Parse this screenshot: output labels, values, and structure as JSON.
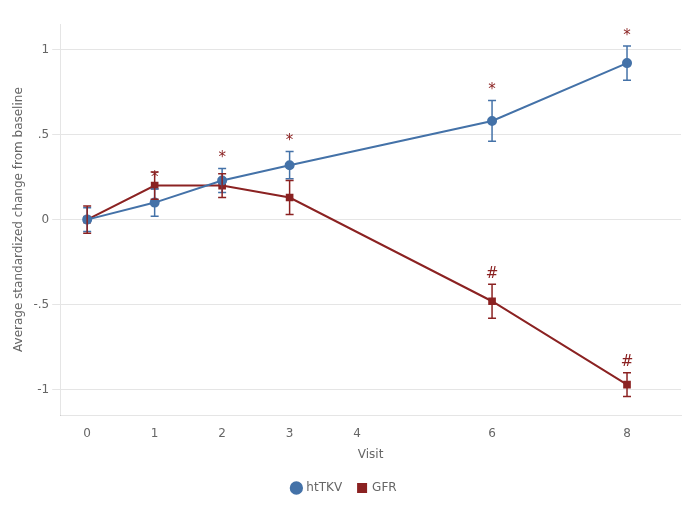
{
  "chart_data": {
    "type": "line",
    "x": [
      0,
      1,
      2,
      3,
      6,
      8
    ],
    "series": [
      {
        "name": "htTKV",
        "color": "#4472A8",
        "marker": "circle",
        "line_style": "solid",
        "values": [
          0.0,
          0.1,
          0.23,
          0.32,
          0.58,
          0.92
        ],
        "errors": [
          0.07,
          0.08,
          0.07,
          0.08,
          0.12,
          0.1
        ]
      },
      {
        "name": "GFR",
        "color": "#8B2222",
        "marker": "square",
        "line_style": "solid",
        "values": [
          0.0,
          0.2,
          0.2,
          0.13,
          -0.48,
          -0.97
        ],
        "errors": [
          0.08,
          0.08,
          0.07,
          0.1,
          0.1,
          0.07
        ]
      }
    ],
    "x_label": "Visit",
    "y_label": "Average standardized change from baseline",
    "xlim": [
      -0.4,
      8.8
    ],
    "xticks": [
      0,
      1,
      2,
      3,
      4,
      6,
      8
    ],
    "ylim": [
      -1.15,
      1.15
    ],
    "yticks": [
      -1,
      {
        "value": -0.5,
        "label": "-.5"
      },
      0,
      {
        "value": 0.5,
        "label": ".5"
      },
      1
    ],
    "grid": "y",
    "legend": "bottom",
    "annotations": [
      {
        "series": "htTKV",
        "x": 1,
        "text": "*",
        "color": "#8B2222"
      },
      {
        "series": "htTKV",
        "x": 2,
        "text": "*",
        "color": "#8B2222"
      },
      {
        "series": "htTKV",
        "x": 3,
        "text": "*",
        "color": "#8B2222"
      },
      {
        "series": "htTKV",
        "x": 6,
        "text": "*",
        "color": "#8B2222"
      },
      {
        "series": "htTKV",
        "x": 8,
        "text": "*",
        "color": "#8B2222"
      },
      {
        "series": "GFR",
        "x": 6,
        "text": "#",
        "color": "#8B2222"
      },
      {
        "series": "GFR",
        "x": 8,
        "text": "#",
        "color": "#8B2222"
      }
    ]
  }
}
